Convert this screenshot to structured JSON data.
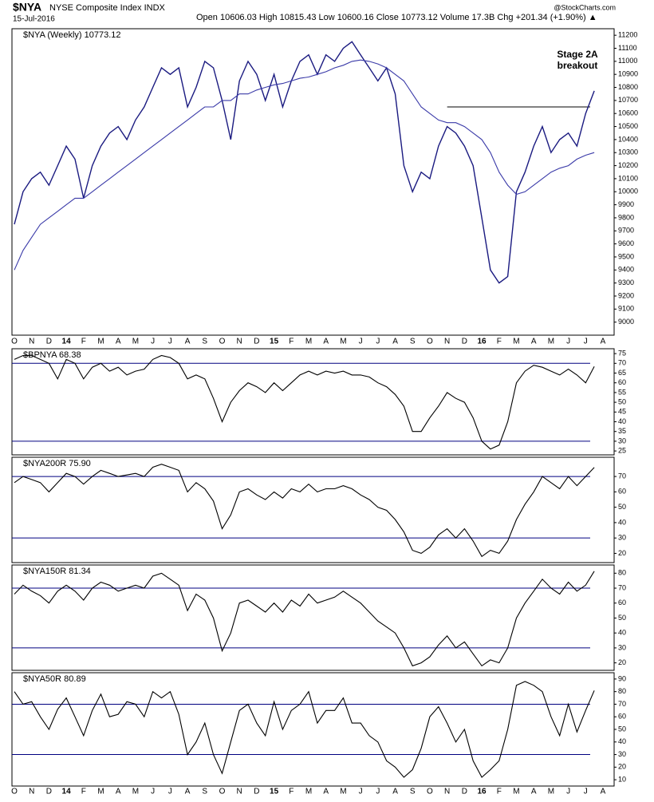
{
  "header": {
    "symbol": "$NYA",
    "name": "NYSE Composite Index INDX",
    "date": "15-Jul-2016",
    "quote": "Open 10606.03 High 10815.43 Low 10600.16 Close 10773.12 Volume 17.3B Chg +201.34 (+1.90%) ▲",
    "source": "@StockCharts.com"
  },
  "chart_data": [
    {
      "type": "line",
      "title": "$NYA (Weekly) 10773.12",
      "annotations": [
        "Stage 2A",
        "breakout"
      ],
      "hlines": [
        10650
      ],
      "grid": false,
      "categories": [
        "O",
        null,
        "N",
        null,
        "D",
        null,
        "14",
        null,
        "F",
        null,
        "M",
        null,
        "A",
        null,
        "M",
        null,
        "J",
        null,
        "J",
        null,
        "A",
        null,
        "S",
        null,
        "O",
        null,
        "N",
        null,
        "D",
        null,
        "15",
        null,
        "F",
        null,
        "M",
        null,
        "A",
        null,
        "M",
        null,
        "J",
        null,
        "J",
        null,
        "A",
        null,
        "S",
        null,
        "O",
        null,
        "N",
        null,
        "D",
        null,
        "16",
        null,
        "F",
        null,
        "M",
        null,
        "A",
        null,
        "M",
        null,
        "J",
        null,
        "J",
        null,
        "A"
      ],
      "ylim": [
        8900,
        11250
      ],
      "yticks": [
        9000,
        9100,
        9200,
        9300,
        9400,
        9500,
        9600,
        9700,
        9800,
        9900,
        10000,
        10100,
        10200,
        10300,
        10400,
        10500,
        10600,
        10700,
        10800,
        10900,
        11000,
        11100,
        11200
      ],
      "series": [
        {
          "color": "#1a1a80",
          "values": [
            9750,
            10000,
            10100,
            10150,
            10050,
            10200,
            10350,
            10250,
            9950,
            10200,
            10350,
            10450,
            10500,
            10400,
            10550,
            10650,
            10800,
            10950,
            10900,
            10950,
            10650,
            10800,
            11000,
            10950,
            10700,
            10400,
            10850,
            11000,
            10900,
            10700,
            10900,
            10650,
            10850,
            11000,
            11050,
            10900,
            11050,
            11000,
            11100,
            11150,
            11050,
            10950,
            10850,
            10950,
            10750,
            10200,
            10000,
            10150,
            10100,
            10350,
            10500,
            10450,
            10350,
            10200,
            9800,
            9400,
            9300,
            9350,
            10000,
            10150,
            10350,
            10500,
            10300,
            10400,
            10450,
            10350,
            10600,
            10773.12,
            null
          ]
        },
        {
          "color": "#3a3aa8",
          "values": [
            9400,
            9550,
            9650,
            9750,
            9800,
            9850,
            9900,
            9950,
            9950,
            10000,
            10050,
            10100,
            10150,
            10200,
            10250,
            10300,
            10350,
            10400,
            10450,
            10500,
            10550,
            10600,
            10650,
            10650,
            10700,
            10700,
            10750,
            10750,
            10780,
            10800,
            10820,
            10830,
            10850,
            10870,
            10880,
            10900,
            10920,
            10950,
            10970,
            11000,
            11010,
            11000,
            10980,
            10950,
            10900,
            10850,
            10750,
            10650,
            10600,
            10550,
            10530,
            10530,
            10500,
            10450,
            10400,
            10300,
            10150,
            10050,
            9980,
            10000,
            10050,
            10100,
            10150,
            10180,
            10200,
            10250,
            10280,
            10300,
            null
          ]
        }
      ]
    },
    {
      "type": "line",
      "title": "$BPNYA 68.38",
      "hlines": [
        70,
        30
      ],
      "ylim": [
        23,
        77.5
      ],
      "yticks": [
        25,
        30,
        35,
        40,
        45,
        50,
        55,
        60,
        65,
        70,
        75
      ],
      "series": [
        {
          "color": "#000000",
          "values": [
            72,
            74,
            74,
            72,
            70,
            62,
            72,
            70,
            62,
            68,
            70,
            66,
            68,
            64,
            66,
            67,
            72,
            74,
            73,
            70,
            62,
            64,
            62,
            52,
            40,
            50,
            56,
            60,
            58,
            55,
            60,
            56,
            60,
            64,
            66,
            64,
            66,
            65,
            66,
            64,
            64,
            63,
            60,
            58,
            54,
            48,
            35,
            35,
            42,
            48,
            55,
            52,
            50,
            42,
            30,
            26,
            28,
            40,
            60,
            66,
            69,
            68,
            66,
            64,
            67,
            64,
            60,
            68.38,
            null
          ]
        }
      ]
    },
    {
      "type": "line",
      "title": "$NYA200R 75.90",
      "hlines": [
        70,
        30
      ],
      "ylim": [
        14,
        82.5
      ],
      "yticks": [
        20,
        30,
        40,
        50,
        60,
        70
      ],
      "series": [
        {
          "color": "#000000",
          "values": [
            66,
            70,
            68,
            66,
            60,
            66,
            72,
            70,
            65,
            70,
            74,
            72,
            70,
            71,
            72,
            70,
            76,
            78,
            76,
            74,
            60,
            66,
            62,
            54,
            36,
            45,
            60,
            62,
            58,
            55,
            60,
            56,
            62,
            60,
            65,
            60,
            62,
            62,
            64,
            62,
            58,
            55,
            50,
            48,
            42,
            34,
            22,
            20,
            24,
            32,
            36,
            30,
            36,
            28,
            18,
            22,
            20,
            28,
            42,
            52,
            60,
            70,
            66,
            62,
            70,
            64,
            70,
            75.9,
            null
          ]
        }
      ]
    },
    {
      "type": "line",
      "title": "$NYA150R 81.34",
      "hlines": [
        70,
        30
      ],
      "ylim": [
        15,
        85.5
      ],
      "yticks": [
        20,
        30,
        40,
        50,
        60,
        70,
        80
      ],
      "series": [
        {
          "color": "#000000",
          "values": [
            66,
            72,
            68,
            65,
            60,
            68,
            72,
            68,
            62,
            70,
            74,
            72,
            68,
            70,
            72,
            70,
            78,
            80,
            76,
            72,
            55,
            66,
            62,
            50,
            28,
            40,
            60,
            62,
            58,
            54,
            60,
            54,
            62,
            58,
            66,
            60,
            62,
            64,
            68,
            64,
            60,
            54,
            48,
            44,
            40,
            30,
            18,
            20,
            24,
            32,
            38,
            30,
            34,
            26,
            18,
            22,
            20,
            30,
            50,
            60,
            68,
            76,
            70,
            66,
            74,
            68,
            72,
            81.34,
            null
          ]
        }
      ]
    },
    {
      "type": "line",
      "title": "$NYA50R 80.89",
      "hlines": [
        70,
        30
      ],
      "ylim": [
        5,
        95
      ],
      "yticks": [
        10,
        20,
        30,
        40,
        50,
        60,
        70,
        80,
        90
      ],
      "series": [
        {
          "color": "#000000",
          "values": [
            80,
            70,
            72,
            60,
            50,
            66,
            75,
            60,
            45,
            65,
            78,
            60,
            62,
            72,
            70,
            60,
            80,
            75,
            80,
            62,
            30,
            40,
            55,
            30,
            15,
            40,
            65,
            70,
            55,
            45,
            72,
            50,
            65,
            70,
            80,
            55,
            65,
            65,
            75,
            55,
            55,
            45,
            40,
            25,
            20,
            12,
            18,
            35,
            60,
            68,
            55,
            40,
            50,
            25,
            12,
            18,
            25,
            50,
            85,
            88,
            85,
            80,
            60,
            45,
            70,
            48,
            65,
            80.89,
            null
          ]
        }
      ]
    }
  ]
}
